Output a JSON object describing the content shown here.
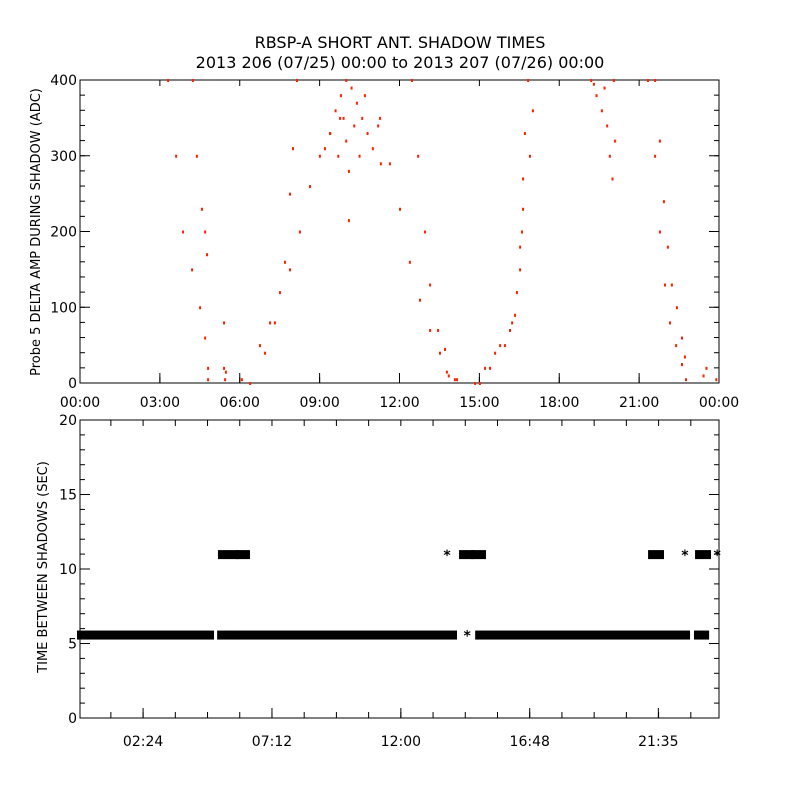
{
  "chart_data": [
    {
      "type": "scatter",
      "title": "RBSP-A SHORT ANT. SHADOW TIMES",
      "subtitle": "2013 206 (07/25) 00:00 to 2013 207 (07/26) 00:00",
      "xlabel": "",
      "ylabel": "Probe 5 DELTA AMP DURING SHADOW (ADC)",
      "xlim_hours": [
        0,
        24
      ],
      "ylim": [
        0,
        400
      ],
      "xticks": [
        {
          "h": 0,
          "label": "00:00"
        },
        {
          "h": 3,
          "label": "03:00"
        },
        {
          "h": 6,
          "label": "06:00"
        },
        {
          "h": 9,
          "label": "09:00"
        },
        {
          "h": 12,
          "label": "12:00"
        },
        {
          "h": 15,
          "label": "15:00"
        },
        {
          "h": 18,
          "label": "18:00"
        },
        {
          "h": 21,
          "label": "21:00"
        },
        {
          "h": 24,
          "label": "00:00"
        }
      ],
      "yticks": [
        {
          "v": 0,
          "label": "0"
        },
        {
          "v": 100,
          "label": "100"
        },
        {
          "v": 200,
          "label": "200"
        },
        {
          "v": 300,
          "label": "300"
        },
        {
          "v": 400,
          "label": "400"
        }
      ],
      "marker_color": "#ff2000",
      "grid": false,
      "points": [
        [
          3.31,
          400
        ],
        [
          3.61,
          300
        ],
        [
          3.87,
          200
        ],
        [
          4.21,
          150
        ],
        [
          4.51,
          100
        ],
        [
          4.7,
          60
        ],
        [
          4.24,
          400
        ],
        [
          4.39,
          300
        ],
        [
          4.58,
          230
        ],
        [
          4.7,
          200
        ],
        [
          4.77,
          170
        ],
        [
          4.81,
          20
        ],
        [
          4.81,
          5
        ],
        [
          5.41,
          80
        ],
        [
          5.41,
          20
        ],
        [
          5.48,
          15
        ],
        [
          5.45,
          5
        ],
        [
          6.08,
          5
        ],
        [
          6.76,
          50
        ],
        [
          7.14,
          80
        ],
        [
          7.51,
          120
        ],
        [
          7.7,
          160
        ],
        [
          7.89,
          250
        ],
        [
          8.0,
          310
        ],
        [
          8.15,
          400
        ],
        [
          6.39,
          0
        ],
        [
          6.95,
          40
        ],
        [
          7.32,
          80
        ],
        [
          7.89,
          150
        ],
        [
          8.26,
          200
        ],
        [
          8.64,
          260
        ],
        [
          9.01,
          300
        ],
        [
          9.39,
          330
        ],
        [
          9.77,
          350
        ],
        [
          9.4,
          330
        ],
        [
          9.6,
          360
        ],
        [
          9.8,
          380
        ],
        [
          10.0,
          400
        ],
        [
          10.2,
          390
        ],
        [
          10.4,
          370
        ],
        [
          10.6,
          350
        ],
        [
          10.8,
          330
        ],
        [
          11.0,
          310
        ],
        [
          9.7,
          300
        ],
        [
          10.0,
          320
        ],
        [
          10.3,
          340
        ],
        [
          10.5,
          300
        ],
        [
          9.9,
          350
        ],
        [
          10.1,
          280
        ],
        [
          10.7,
          380
        ],
        [
          11.2,
          340
        ],
        [
          11.3,
          290
        ],
        [
          9.2,
          310
        ],
        [
          10.1,
          215
        ],
        [
          11.27,
          350
        ],
        [
          11.64,
          290
        ],
        [
          12.02,
          230
        ],
        [
          12.39,
          160
        ],
        [
          12.77,
          110
        ],
        [
          13.15,
          70
        ],
        [
          13.52,
          40
        ],
        [
          13.78,
          15
        ],
        [
          12.47,
          400
        ],
        [
          12.7,
          300
        ],
        [
          12.96,
          200
        ],
        [
          13.15,
          130
        ],
        [
          13.45,
          70
        ],
        [
          13.71,
          45
        ],
        [
          13.85,
          10
        ],
        [
          14.08,
          5
        ],
        [
          14.16,
          5
        ],
        [
          15.02,
          0
        ],
        [
          15.4,
          20
        ],
        [
          15.78,
          50
        ],
        [
          16.15,
          70
        ],
        [
          16.34,
          90
        ],
        [
          16.53,
          150
        ],
        [
          16.6,
          200
        ],
        [
          16.64,
          270
        ],
        [
          16.71,
          330
        ],
        [
          16.83,
          400
        ],
        [
          14.84,
          0
        ],
        [
          15.21,
          20
        ],
        [
          15.59,
          40
        ],
        [
          15.96,
          50
        ],
        [
          16.23,
          80
        ],
        [
          16.41,
          120
        ],
        [
          16.53,
          180
        ],
        [
          16.64,
          230
        ],
        [
          16.9,
          300
        ],
        [
          17.01,
          360
        ],
        [
          19.2,
          400
        ],
        [
          19.4,
          380
        ],
        [
          19.6,
          360
        ],
        [
          19.8,
          340
        ],
        [
          19.9,
          300
        ],
        [
          20.0,
          270
        ],
        [
          20.1,
          320
        ],
        [
          19.7,
          390
        ],
        [
          20.05,
          400
        ],
        [
          19.3,
          395
        ],
        [
          21.33,
          400
        ],
        [
          21.6,
          300
        ],
        [
          21.78,
          200
        ],
        [
          21.97,
          130
        ],
        [
          22.16,
          80
        ],
        [
          22.39,
          50
        ],
        [
          22.61,
          25
        ],
        [
          22.76,
          5
        ],
        [
          21.6,
          400
        ],
        [
          21.78,
          320
        ],
        [
          21.93,
          240
        ],
        [
          22.08,
          180
        ],
        [
          22.23,
          130
        ],
        [
          22.42,
          100
        ],
        [
          22.61,
          60
        ],
        [
          22.72,
          35
        ],
        [
          23.42,
          10
        ],
        [
          23.53,
          20
        ],
        [
          23.9,
          5
        ]
      ]
    },
    {
      "type": "scatter",
      "title": "",
      "xlabel": "",
      "ylabel": "TIME BETWEEN SHADOWS (SEC)",
      "xlim_hours": [
        0.05,
        23.85
      ],
      "ylim": [
        0,
        20
      ],
      "xticks": [
        {
          "h": 2.4,
          "label": "02:24"
        },
        {
          "h": 7.2,
          "label": "07:12"
        },
        {
          "h": 12.0,
          "label": "12:00"
        },
        {
          "h": 16.8,
          "label": "16:48"
        },
        {
          "h": 21.59,
          "label": "21:35"
        }
      ],
      "yticks": [
        {
          "v": 0,
          "label": "0"
        },
        {
          "v": 5,
          "label": "5"
        },
        {
          "v": 10,
          "label": "10"
        },
        {
          "v": 15,
          "label": "15"
        },
        {
          "v": 20,
          "label": "20"
        }
      ],
      "marker": "asterisk",
      "marker_color": "#000000",
      "series": [
        {
          "y": 5.6,
          "time_ranges_hours": [
            [
              0.05,
              4.93
            ],
            [
              5.27,
              5.82
            ],
            [
              6.01,
              13.98
            ],
            [
              14.47,
              14.47
            ],
            [
              14.88,
              22.66
            ],
            [
              23.03,
              23.37
            ]
          ]
        },
        {
          "y": 11.0,
          "time_ranges_hours": [
            [
              5.3,
              5.86
            ],
            [
              5.97,
              6.27
            ],
            [
              13.72,
              13.72
            ],
            [
              14.28,
              14.61
            ],
            [
              14.73,
              15.06
            ],
            [
              21.32,
              21.69
            ],
            [
              22.58,
              22.58
            ],
            [
              23.07,
              23.44
            ],
            [
              23.78,
              23.78
            ]
          ]
        }
      ]
    }
  ]
}
